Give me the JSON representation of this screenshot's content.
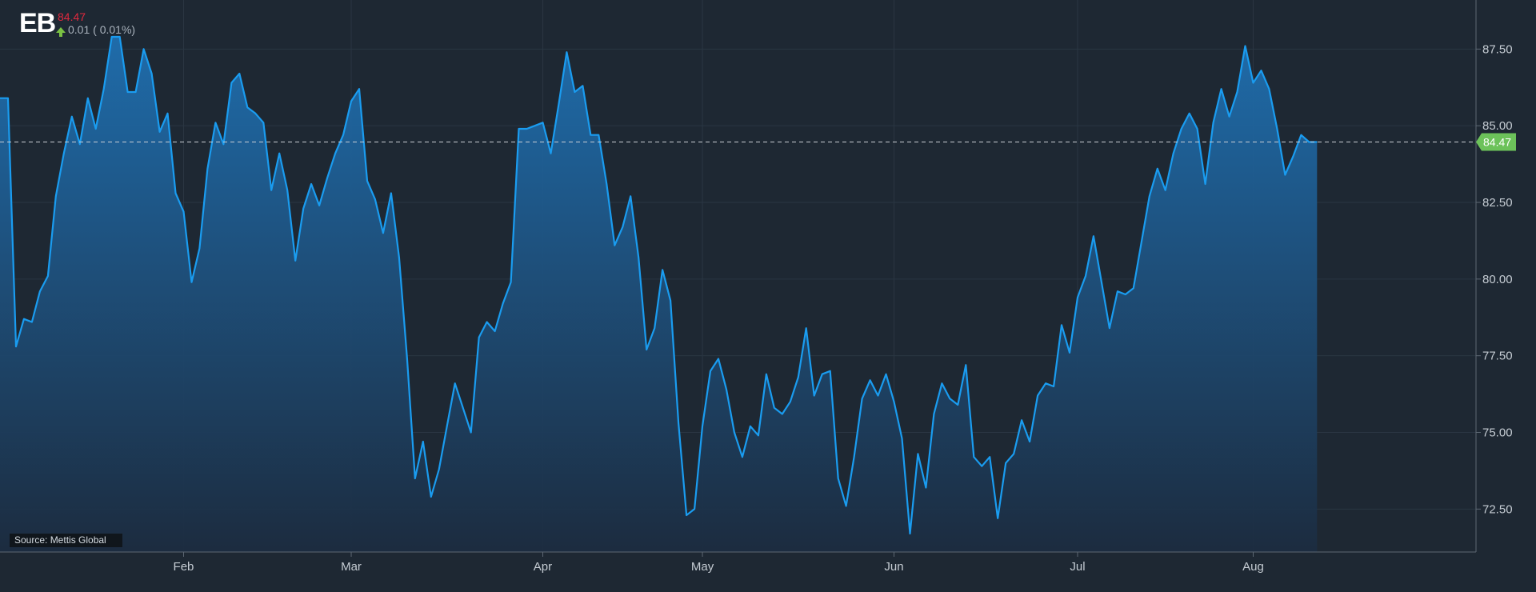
{
  "header": {
    "ticker": "EB",
    "price": "84.47",
    "change": "0.01 ( 0.01%)"
  },
  "source": "Source: Mettis Global",
  "colors": {
    "background": "#1e2833",
    "line": "#1a9cf0",
    "fill_top": "#1f6fb0",
    "fill_bottom": "#1c2c40",
    "price_down": "#e0293e",
    "change_up": "#7ac143",
    "last_label_bg": "#6cc25a"
  },
  "chart_data": {
    "type": "area",
    "title": "",
    "xlabel": "",
    "ylabel": "",
    "ylim": [
      71.1,
      89.1
    ],
    "y_ticks": [
      72.5,
      75.0,
      77.5,
      80.0,
      82.5,
      85.0,
      87.5
    ],
    "y_tick_labels": [
      "72.50",
      "75.00",
      "77.50",
      "80.00",
      "82.50",
      "85.00",
      "87.50"
    ],
    "x_ticks": [
      23,
      44,
      68,
      88,
      112,
      135,
      157
    ],
    "x_tick_labels": [
      "Feb",
      "Mar",
      "Apr",
      "May",
      "Jun",
      "Jul",
      "Aug"
    ],
    "xlim": [
      0,
      179
    ],
    "grid": true,
    "last_value": 84.47,
    "last_value_label": "84.47",
    "series": [
      {
        "values": [
          85.9,
          85.9,
          77.8,
          78.7,
          78.6,
          79.6,
          80.1,
          82.7,
          84.1,
          85.3,
          84.4,
          85.9,
          84.9,
          86.2,
          87.9,
          87.9,
          86.1,
          86.1,
          87.5,
          86.7,
          84.8,
          85.4,
          82.8,
          82.2,
          79.9,
          81.0,
          83.6,
          85.1,
          84.4,
          86.4,
          86.7,
          85.6,
          85.4,
          85.1,
          82.9,
          84.1,
          82.9,
          80.6,
          82.3,
          83.1,
          82.4,
          83.3,
          84.1,
          84.7,
          85.8,
          86.2,
          83.2,
          82.6,
          81.5,
          82.8,
          80.7,
          77.4,
          73.5,
          74.7,
          72.9,
          73.8,
          75.2,
          76.6,
          75.8,
          75.0,
          78.1,
          78.6,
          78.3,
          79.2,
          79.9,
          84.9,
          84.9,
          85.0,
          85.1,
          84.1,
          85.7,
          87.4,
          86.1,
          86.3,
          84.7,
          84.7,
          83.1,
          81.1,
          81.7,
          82.7,
          80.7,
          77.7,
          78.4,
          80.3,
          79.3,
          75.3,
          72.3,
          72.5,
          75.2,
          77.0,
          77.4,
          76.4,
          75.0,
          74.2,
          75.2,
          74.9,
          76.9,
          75.8,
          75.6,
          76.0,
          76.8,
          78.4,
          76.2,
          76.9,
          77.0,
          73.5,
          72.6,
          74.2,
          76.1,
          76.7,
          76.2,
          76.9,
          76.0,
          74.8,
          71.7,
          74.3,
          73.2,
          75.6,
          76.6,
          76.1,
          75.9,
          77.2,
          74.2,
          73.9,
          74.2,
          72.2,
          74.0,
          74.3,
          75.4,
          74.7,
          76.2,
          76.6,
          76.5,
          78.5,
          77.6,
          79.4,
          80.1,
          81.4,
          79.9,
          78.4,
          79.6,
          79.5,
          79.7,
          81.2,
          82.7,
          83.6,
          82.9,
          84.1,
          84.9,
          85.4,
          84.9,
          83.1,
          85.1,
          86.2,
          85.3,
          86.1,
          87.6,
          86.4,
          86.8,
          86.2,
          84.9,
          83.4,
          84.0,
          84.7,
          84.47,
          84.47
        ]
      }
    ]
  }
}
